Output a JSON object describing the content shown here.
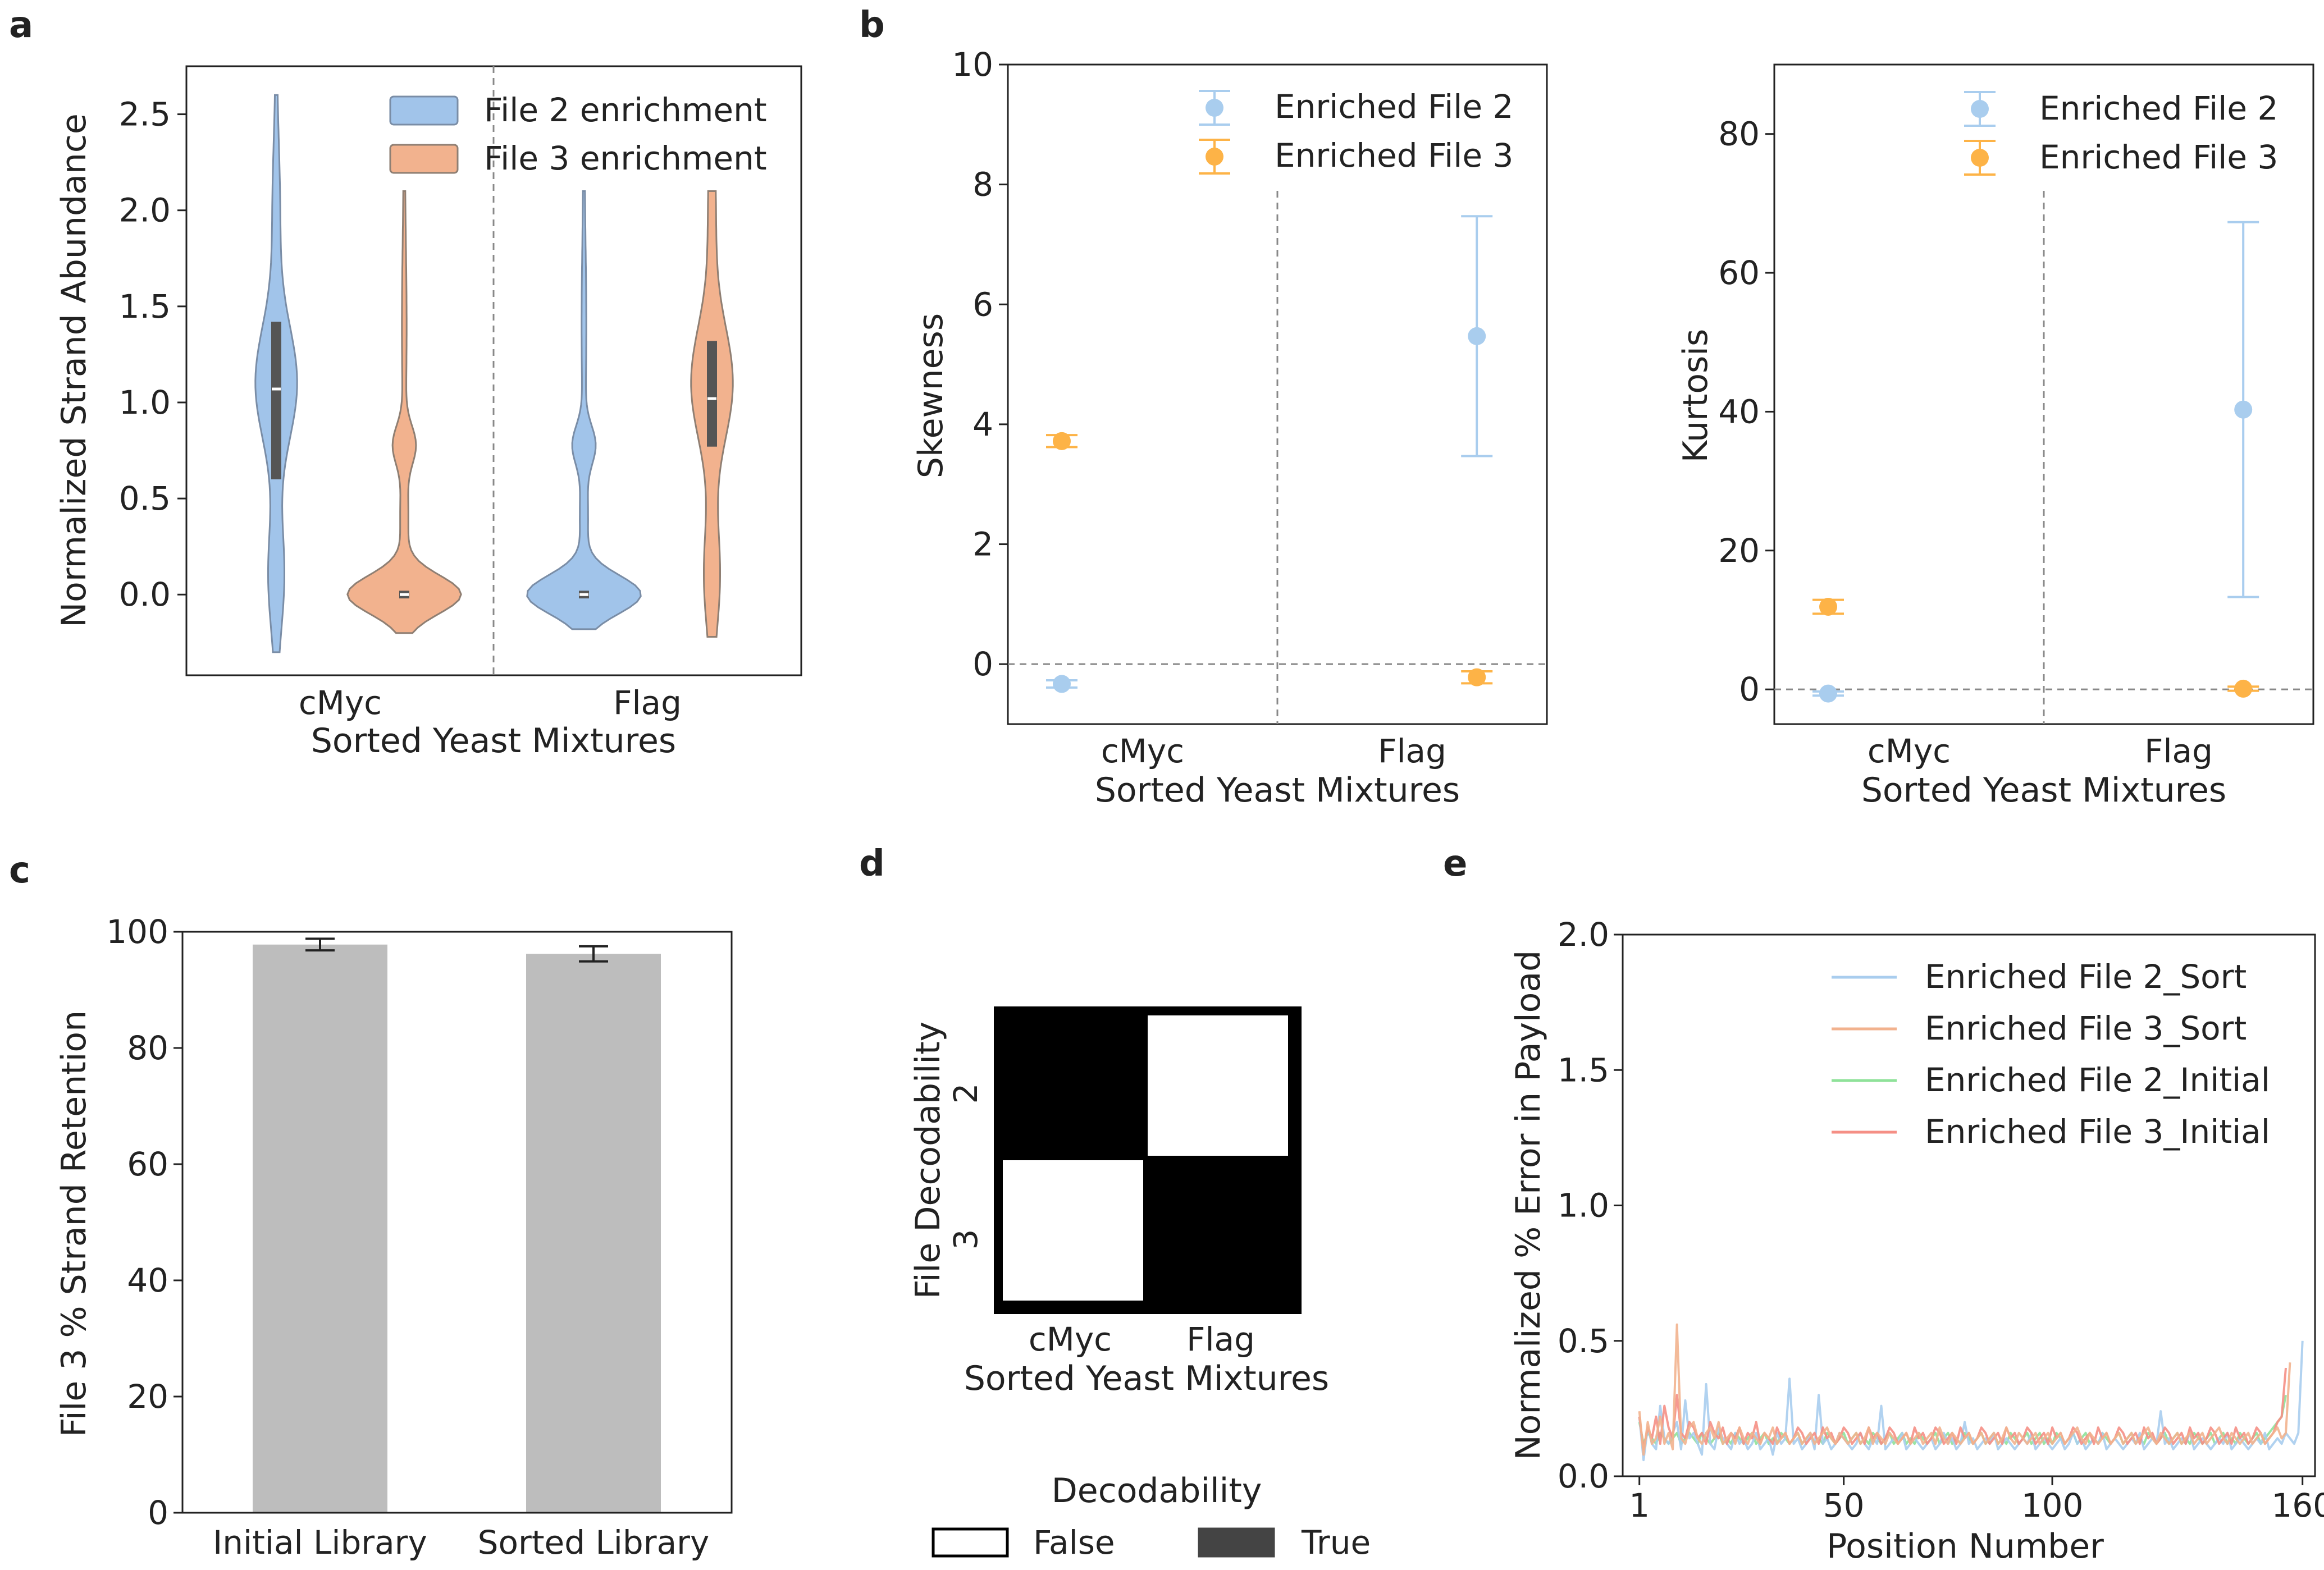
{
  "panels": {
    "a": "a",
    "b": "b",
    "c": "c",
    "d": "d",
    "e": "e"
  },
  "colors": {
    "blue": "#a1c4ea",
    "blue_edge": "#7a8da6",
    "orange": "#f2b28e",
    "orange_edge": "#8f7f73",
    "err_blue": "#a9cdee",
    "err_orange": "#fdb347",
    "bar_gray": "#bdbdbd",
    "line_green": "#8fe29a",
    "line_red": "#f58f85"
  },
  "chart_data": [
    {
      "id": "a",
      "type": "violin",
      "title": "",
      "xlabel": "Sorted Yeast Mixtures",
      "ylabel": "Normalized Strand Abundance",
      "categories": [
        "cMyc",
        "Flag"
      ],
      "ylim": [
        -0.42,
        2.75
      ],
      "yticks": [
        "0.0",
        "0.5",
        "1.0",
        "1.5",
        "2.0",
        "2.5"
      ],
      "ytick_values": [
        0.0,
        0.5,
        1.0,
        1.5,
        2.0,
        2.5
      ],
      "legend": [
        "File 2 enrichment",
        "File 3 enrichment"
      ],
      "series": [
        {
          "name": "File 2 enrichment",
          "cMyc": {
            "min": -0.3,
            "max": 2.6,
            "q1": 0.6,
            "median": 1.07,
            "q3": 1.42
          },
          "Flag": {
            "min": -0.18,
            "max": 2.1,
            "q1": -0.02,
            "median": 0.0,
            "q3": 0.02
          }
        },
        {
          "name": "File 3 enrichment",
          "cMyc": {
            "min": -0.2,
            "max": 2.1,
            "q1": -0.02,
            "median": 0.0,
            "q3": 0.02
          },
          "Flag": {
            "min": -0.22,
            "max": 2.1,
            "q1": 0.77,
            "median": 1.02,
            "q3": 1.32
          }
        }
      ]
    },
    {
      "id": "b-left",
      "type": "errorbar",
      "xlabel": "Sorted Yeast Mixtures",
      "ylabel": "Skewness",
      "categories": [
        "cMyc",
        "Flag"
      ],
      "ylim": [
        -1.0,
        10.0
      ],
      "yticks": [
        "0",
        "2",
        "4",
        "6",
        "8",
        "10"
      ],
      "ytick_values": [
        0,
        2,
        4,
        6,
        8,
        10
      ],
      "legend": [
        "Enriched File 2",
        "Enriched File 3"
      ],
      "series": [
        {
          "name": "Enriched File 2",
          "values": [
            -0.33,
            5.47
          ],
          "err_low": [
            0.06,
            2.0
          ],
          "err_high": [
            0.06,
            2.0
          ]
        },
        {
          "name": "Enriched File 3",
          "values": [
            3.72,
            -0.22
          ],
          "err_low": [
            0.1,
            0.1
          ],
          "err_high": [
            0.1,
            0.1
          ]
        }
      ]
    },
    {
      "id": "b-right",
      "type": "errorbar",
      "xlabel": "Sorted Yeast Mixtures",
      "ylabel": "Kurtosis",
      "categories": [
        "cMyc",
        "Flag"
      ],
      "ylim": [
        -5.0,
        90.0
      ],
      "yticks": [
        "0",
        "20",
        "40",
        "60",
        "80"
      ],
      "ytick_values": [
        0,
        20,
        40,
        60,
        80
      ],
      "legend": [
        "Enriched File 2",
        "Enriched File 3"
      ],
      "series": [
        {
          "name": "Enriched File 2",
          "values": [
            -0.6,
            40.3
          ],
          "err_low": [
            0.3,
            27.0
          ],
          "err_high": [
            0.3,
            27.0
          ]
        },
        {
          "name": "Enriched File 3",
          "values": [
            11.9,
            0.1
          ],
          "err_low": [
            1.0,
            0.3
          ],
          "err_high": [
            1.0,
            0.3
          ]
        }
      ]
    },
    {
      "id": "c",
      "type": "bar",
      "xlabel": "",
      "ylabel": "File 3 % Strand Retention",
      "categories": [
        "Initial Library",
        "Sorted Library"
      ],
      "values": [
        97.8,
        96.2
      ],
      "errors": [
        1.0,
        1.3
      ],
      "ylim": [
        0,
        100
      ],
      "yticks": [
        "0",
        "20",
        "40",
        "60",
        "80",
        "100"
      ],
      "ytick_values": [
        0,
        20,
        40,
        60,
        80,
        100
      ]
    },
    {
      "id": "d",
      "type": "heatmap",
      "xlabel": "Sorted Yeast Mixtures",
      "ylabel": "File Decodability",
      "x_categories": [
        "cMyc",
        "Flag"
      ],
      "y_categories": [
        "2",
        "3"
      ],
      "matrix": [
        [
          true,
          false
        ],
        [
          false,
          true
        ]
      ],
      "legend_title": "Decodability",
      "legend": [
        "False",
        "True"
      ]
    },
    {
      "id": "e",
      "type": "line",
      "xlabel": "Position Number",
      "ylabel": "Normalized % Error in Payload",
      "xlim": [
        -3,
        163
      ],
      "ylim": [
        0.0,
        2.0
      ],
      "xticks": [
        "1",
        "50",
        "100",
        "160"
      ],
      "xtick_values": [
        1,
        50,
        100,
        160
      ],
      "yticks": [
        "0.0",
        "0.5",
        "1.0",
        "1.5",
        "2.0"
      ],
      "ytick_values": [
        0.0,
        0.5,
        1.0,
        1.5,
        2.0
      ],
      "legend": [
        "Enriched File 2_Sort",
        "Enriched File 3_Sort",
        "Enriched File 2_Initial",
        "Enriched File 3_Initial"
      ],
      "series": [
        {
          "name": "Enriched File 2_Sort",
          "x_start": 1,
          "values": [
            0.22,
            0.06,
            0.18,
            0.12,
            0.1,
            0.26,
            0.14,
            0.12,
            0.16,
            0.2,
            0.1,
            0.28,
            0.14,
            0.16,
            0.12,
            0.08,
            0.34,
            0.12,
            0.1,
            0.18,
            0.14,
            0.12,
            0.1,
            0.16,
            0.12,
            0.14,
            0.1,
            0.12,
            0.16,
            0.1,
            0.12,
            0.14,
            0.08,
            0.16,
            0.12,
            0.14,
            0.36,
            0.12,
            0.14,
            0.1,
            0.12,
            0.16,
            0.1,
            0.3,
            0.12,
            0.14,
            0.1,
            0.12,
            0.16,
            0.14,
            0.12,
            0.1,
            0.12,
            0.16,
            0.12,
            0.1,
            0.14,
            0.12,
            0.26,
            0.1,
            0.12,
            0.14,
            0.12,
            0.16,
            0.1,
            0.12,
            0.14,
            0.12,
            0.1,
            0.12,
            0.14,
            0.1,
            0.12,
            0.16,
            0.12,
            0.14,
            0.1,
            0.12,
            0.2,
            0.12,
            0.14,
            0.1,
            0.12,
            0.14,
            0.12,
            0.16,
            0.1,
            0.12,
            0.14,
            0.12,
            0.1,
            0.12,
            0.14,
            0.12,
            0.16,
            0.1,
            0.12,
            0.14,
            0.12,
            0.1,
            0.12,
            0.14,
            0.1,
            0.12,
            0.16,
            0.12,
            0.14,
            0.1,
            0.12,
            0.14,
            0.12,
            0.16,
            0.1,
            0.12,
            0.14,
            0.12,
            0.1,
            0.12,
            0.14,
            0.12,
            0.16,
            0.1,
            0.12,
            0.14,
            0.12,
            0.24,
            0.12,
            0.14,
            0.1,
            0.12,
            0.14,
            0.12,
            0.16,
            0.1,
            0.12,
            0.14,
            0.12,
            0.1,
            0.12,
            0.14,
            0.12,
            0.16,
            0.1,
            0.12,
            0.14,
            0.12,
            0.1,
            0.12,
            0.14,
            0.12,
            0.16,
            0.1,
            0.12,
            0.14,
            0.12,
            0.16,
            0.14,
            0.12,
            0.16,
            0.5
          ]
        },
        {
          "name": "Enriched File 3_Sort",
          "x_start": 1,
          "values": [
            0.24,
            0.08,
            0.2,
            0.12,
            0.14,
            0.22,
            0.12,
            0.16,
            0.1,
            0.56,
            0.14,
            0.12,
            0.18,
            0.2,
            0.14,
            0.12,
            0.16,
            0.18,
            0.14,
            0.2,
            0.12,
            0.14,
            0.16,
            0.12,
            0.18,
            0.14,
            0.12,
            0.16,
            0.14,
            0.12,
            0.16,
            0.14,
            0.18,
            0.12,
            0.14,
            0.16,
            0.12,
            0.14,
            0.16,
            0.12,
            0.14,
            0.16,
            0.12,
            0.14,
            0.16,
            0.18,
            0.14,
            0.12,
            0.16,
            0.14,
            0.12,
            0.14,
            0.16,
            0.12,
            0.14,
            0.18,
            0.12,
            0.16,
            0.14,
            0.12,
            0.16,
            0.14,
            0.12,
            0.14,
            0.16,
            0.12,
            0.14,
            0.16,
            0.12,
            0.14,
            0.16,
            0.12,
            0.18,
            0.14,
            0.12,
            0.16,
            0.14,
            0.12,
            0.14,
            0.16,
            0.12,
            0.14,
            0.16,
            0.12,
            0.14,
            0.16,
            0.12,
            0.14,
            0.18,
            0.14,
            0.12,
            0.16,
            0.14,
            0.12,
            0.14,
            0.16,
            0.12,
            0.14,
            0.16,
            0.12,
            0.14,
            0.16,
            0.12,
            0.14,
            0.16,
            0.18,
            0.14,
            0.12,
            0.16,
            0.14,
            0.12,
            0.14,
            0.16,
            0.12,
            0.14,
            0.16,
            0.12,
            0.14,
            0.16,
            0.12,
            0.14,
            0.16,
            0.18,
            0.14,
            0.12,
            0.16,
            0.14,
            0.12,
            0.14,
            0.16,
            0.12,
            0.14,
            0.16,
            0.12,
            0.14,
            0.16,
            0.12,
            0.14,
            0.16,
            0.18,
            0.14,
            0.12,
            0.16,
            0.14,
            0.12,
            0.14,
            0.16,
            0.12,
            0.14,
            0.16,
            0.12,
            0.14,
            0.16,
            0.18,
            0.14,
            0.16,
            0.42
          ]
        },
        {
          "name": "Enriched File 2_Initial",
          "x_start": 1,
          "values": [
            0.2,
            0.12,
            0.16,
            0.14,
            0.12,
            0.16,
            0.14,
            0.12,
            0.14,
            0.16,
            0.12,
            0.14,
            0.16,
            0.14,
            0.12,
            0.16,
            0.14,
            0.12,
            0.14,
            0.16,
            0.12,
            0.14,
            0.12,
            0.16,
            0.14,
            0.12,
            0.14,
            0.16,
            0.12,
            0.14,
            0.16,
            0.12,
            0.14,
            0.12,
            0.16,
            0.14,
            0.12,
            0.14,
            0.16,
            0.12,
            0.14,
            0.16,
            0.12,
            0.14,
            0.12,
            0.16,
            0.14,
            0.12,
            0.14,
            0.16,
            0.12,
            0.14,
            0.16,
            0.12,
            0.14,
            0.12,
            0.16,
            0.14,
            0.12,
            0.14,
            0.16,
            0.12,
            0.14,
            0.16,
            0.12,
            0.14,
            0.12,
            0.16,
            0.14,
            0.12,
            0.14,
            0.16,
            0.12,
            0.14,
            0.16,
            0.12,
            0.14,
            0.12,
            0.16,
            0.14,
            0.12,
            0.14,
            0.16,
            0.12,
            0.14,
            0.16,
            0.12,
            0.14,
            0.12,
            0.16,
            0.14,
            0.12,
            0.14,
            0.16,
            0.12,
            0.14,
            0.16,
            0.12,
            0.14,
            0.12,
            0.16,
            0.14,
            0.12,
            0.14,
            0.16,
            0.12,
            0.14,
            0.16,
            0.12,
            0.14,
            0.12,
            0.16,
            0.14,
            0.12,
            0.14,
            0.16,
            0.12,
            0.14,
            0.16,
            0.12,
            0.14,
            0.12,
            0.16,
            0.14,
            0.12,
            0.14,
            0.16,
            0.12,
            0.14,
            0.16,
            0.12,
            0.14,
            0.12,
            0.16,
            0.14,
            0.12,
            0.14,
            0.16,
            0.12,
            0.14,
            0.16,
            0.12,
            0.14,
            0.12,
            0.16,
            0.14,
            0.12,
            0.14,
            0.16,
            0.12,
            0.14,
            0.16,
            0.18,
            0.2,
            0.22,
            0.3
          ]
        },
        {
          "name": "Enriched File 3_Initial",
          "x_start": 1,
          "values": [
            0.22,
            0.1,
            0.18,
            0.14,
            0.22,
            0.12,
            0.26,
            0.18,
            0.14,
            0.3,
            0.16,
            0.14,
            0.2,
            0.18,
            0.14,
            0.16,
            0.12,
            0.2,
            0.16,
            0.14,
            0.18,
            0.12,
            0.16,
            0.14,
            0.18,
            0.12,
            0.16,
            0.14,
            0.2,
            0.12,
            0.16,
            0.14,
            0.12,
            0.18,
            0.14,
            0.16,
            0.12,
            0.14,
            0.18,
            0.16,
            0.12,
            0.14,
            0.16,
            0.12,
            0.18,
            0.14,
            0.16,
            0.12,
            0.14,
            0.18,
            0.16,
            0.12,
            0.14,
            0.16,
            0.12,
            0.18,
            0.14,
            0.16,
            0.12,
            0.14,
            0.18,
            0.16,
            0.12,
            0.14,
            0.16,
            0.12,
            0.18,
            0.14,
            0.16,
            0.12,
            0.14,
            0.18,
            0.16,
            0.12,
            0.14,
            0.16,
            0.12,
            0.18,
            0.14,
            0.16,
            0.12,
            0.14,
            0.18,
            0.16,
            0.12,
            0.14,
            0.16,
            0.12,
            0.18,
            0.14,
            0.16,
            0.12,
            0.14,
            0.18,
            0.16,
            0.12,
            0.14,
            0.16,
            0.12,
            0.18,
            0.14,
            0.16,
            0.12,
            0.14,
            0.18,
            0.16,
            0.12,
            0.14,
            0.16,
            0.12,
            0.18,
            0.14,
            0.16,
            0.12,
            0.14,
            0.18,
            0.16,
            0.12,
            0.14,
            0.16,
            0.12,
            0.18,
            0.14,
            0.16,
            0.12,
            0.14,
            0.18,
            0.16,
            0.12,
            0.14,
            0.16,
            0.12,
            0.18,
            0.14,
            0.16,
            0.12,
            0.14,
            0.18,
            0.16,
            0.12,
            0.14,
            0.16,
            0.12,
            0.18,
            0.14,
            0.16,
            0.12,
            0.14,
            0.18,
            0.16,
            0.12,
            0.14,
            0.16,
            0.2,
            0.22,
            0.4
          ]
        }
      ]
    }
  ]
}
